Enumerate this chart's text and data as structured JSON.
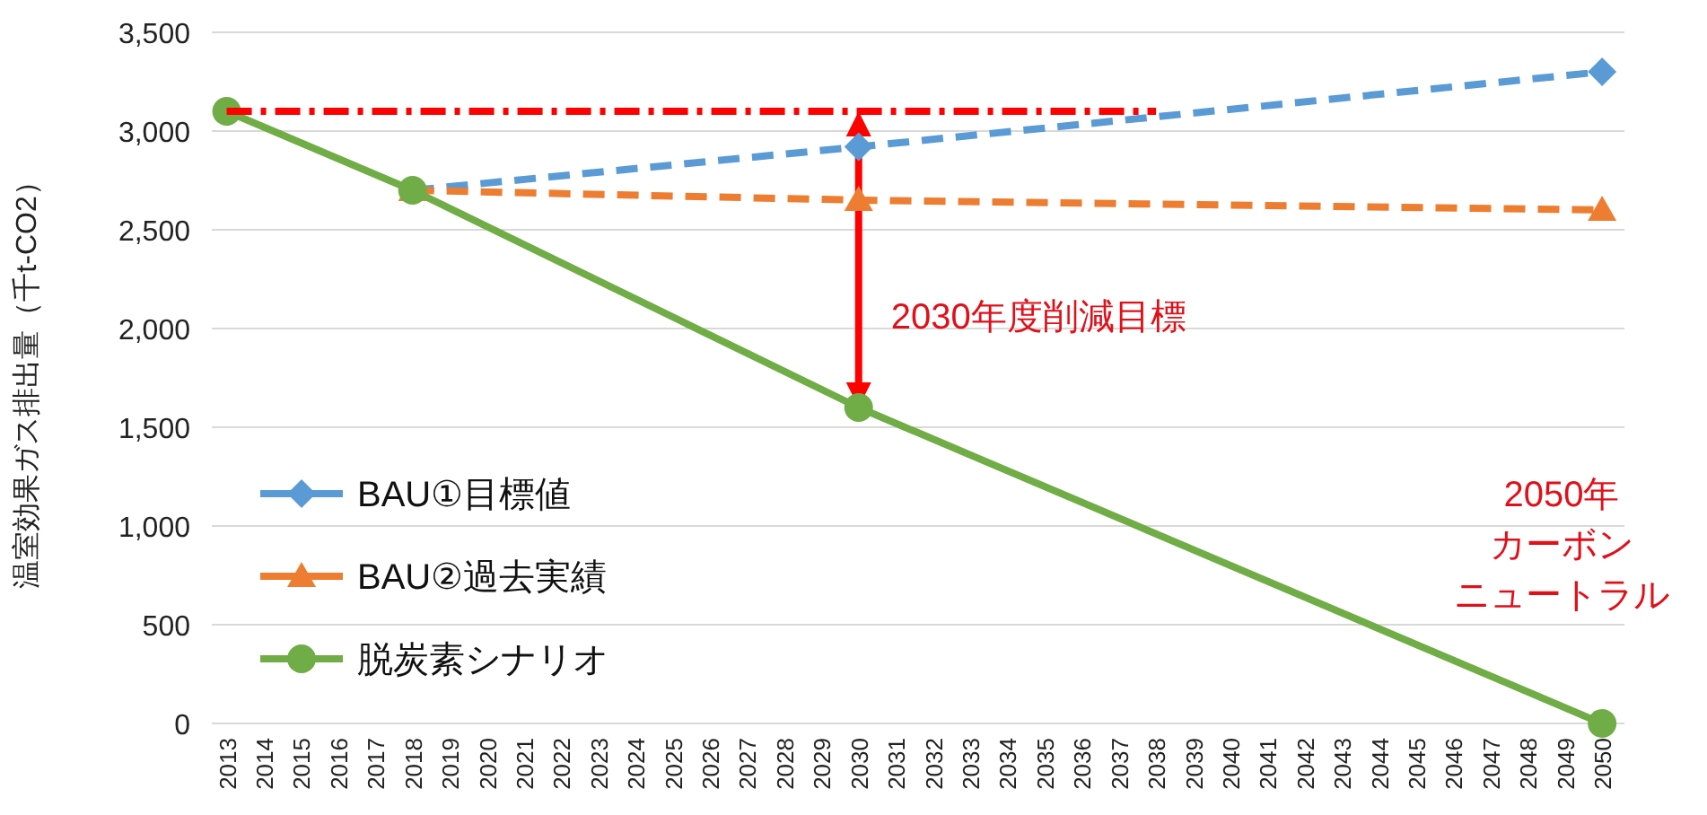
{
  "chart_data": {
    "type": "line",
    "ylabel": "温室効果ガス排出量（千t-CO2）",
    "xlim": [
      2012.6,
      2050.6
    ],
    "xticks": [
      2013,
      2014,
      2015,
      2016,
      2017,
      2018,
      2019,
      2020,
      2021,
      2022,
      2023,
      2024,
      2025,
      2026,
      2027,
      2028,
      2029,
      2030,
      2031,
      2032,
      2033,
      2034,
      2035,
      2036,
      2037,
      2038,
      2039,
      2040,
      2041,
      2042,
      2043,
      2044,
      2045,
      2046,
      2047,
      2048,
      2049,
      2050
    ],
    "ylim": [
      0,
      3500
    ],
    "yticks": [
      0,
      500,
      {
        "value": 1000,
        "label": "1,000"
      },
      {
        "value": 1500,
        "label": "1,500"
      },
      {
        "value": 2000,
        "label": "2,000"
      },
      {
        "value": 2500,
        "label": "2,500"
      },
      {
        "value": 3000,
        "label": "3,000"
      },
      {
        "value": 3500,
        "label": "3,500"
      }
    ],
    "grid": "y",
    "legend": "bottom left",
    "series": [
      {
        "name": "BAU①目標値",
        "color": "#5b9bd5",
        "x": [
          2018,
          2030,
          2050
        ],
        "values": [
          2700,
          2920,
          3300
        ],
        "marker": "diamond",
        "line_style": "dashed"
      },
      {
        "name": "BAU②過去実績",
        "color": "#ed7d31",
        "x": [
          2018,
          2030,
          2050
        ],
        "values": [
          2700,
          2650,
          2600
        ],
        "marker": "triangle",
        "line_style": "dashed"
      },
      {
        "name": "脱炭素シナリオ",
        "color": "#70ad47",
        "x": [
          2013,
          2018,
          2030,
          2050
        ],
        "values": [
          3100,
          2700,
          1600,
          0
        ],
        "marker": "circle",
        "line_style": "solid"
      },
      {
        "color": "#ff0000",
        "x": [
          2013,
          2038
        ],
        "values": [
          3100,
          3100
        ],
        "marker": "none",
        "line_style": "dashdot"
      }
    ],
    "annotations": [
      {
        "text": "2030年度削減目標",
        "x": 2030,
        "y": 1600
      },
      "2050年",
      "カーボン",
      "ニュートラル"
    ]
  }
}
